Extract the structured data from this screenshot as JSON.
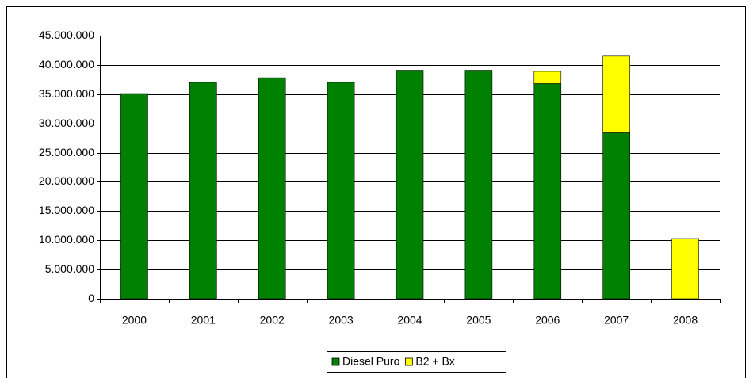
{
  "chart_data": {
    "type": "bar",
    "stacked": true,
    "categories": [
      "2000",
      "2001",
      "2002",
      "2003",
      "2004",
      "2005",
      "2006",
      "2007",
      "2008"
    ],
    "series": [
      {
        "name": "Diesel Puro",
        "color": "#008000",
        "values": [
          35100000,
          37000000,
          37800000,
          37000000,
          39100000,
          39100000,
          36800000,
          28400000,
          0
        ]
      },
      {
        "name": "B2 + Bx",
        "color": "#ffff00",
        "values": [
          0,
          0,
          0,
          0,
          0,
          0,
          2100000,
          13100000,
          10300000
        ]
      }
    ],
    "ylim": [
      0,
      45000000
    ],
    "yticks": [
      0,
      {
        "value": 5000000,
        "label": "5.000.000"
      },
      {
        "value": 10000000,
        "label": "10.000.000"
      },
      {
        "value": 15000000,
        "label": "15.000.000"
      },
      {
        "value": 20000000,
        "label": "20.000.000"
      },
      {
        "value": 25000000,
        "label": "25.000.000"
      },
      {
        "value": 30000000,
        "label": "30.000.000"
      },
      {
        "value": 35000000,
        "label": "35.000.000"
      },
      {
        "value": 40000000,
        "label": "40.000.000"
      },
      {
        "value": 45000000,
        "label": "45.000.000"
      }
    ],
    "grid": true,
    "legend": "bottom"
  }
}
